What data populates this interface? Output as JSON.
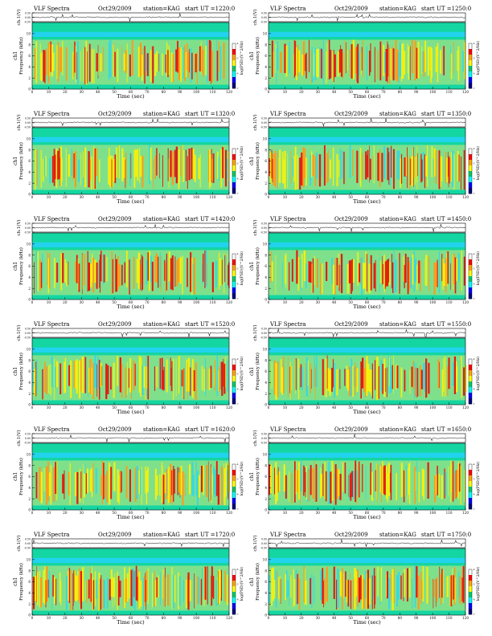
{
  "panels": [
    {
      "title": "VLF Spectra",
      "date": "Oct29/2009",
      "station": "station=KAG",
      "start": "start  UT  =1220:0"
    },
    {
      "title": "VLF Spectra",
      "date": "Oct29/2009",
      "station": "station=KAG",
      "start": "start  UT  =1250:0"
    },
    {
      "title": "VLF Spectra",
      "date": "Oct29/2009",
      "station": "station=KAG",
      "start": "start  UT  =1320:0"
    },
    {
      "title": "VLF Spectra",
      "date": "Oct29/2009",
      "station": "station=KAG",
      "start": "start  UT  =1350:0"
    },
    {
      "title": "VLF Spectra",
      "date": "Oct29/2009",
      "station": "station=KAG",
      "start": "start  UT  =1420:0"
    },
    {
      "title": "VLF Spectra",
      "date": "Oct29/2009",
      "station": "station=KAG",
      "start": "start  UT  =1450:0"
    },
    {
      "title": "VLF Spectra",
      "date": "Oct29/2009",
      "station": "station=KAG",
      "start": "start  UT  =1520:0"
    },
    {
      "title": "VLF Spectra",
      "date": "Oct29/2009",
      "station": "station=KAG",
      "start": "start  UT  =1550:0"
    },
    {
      "title": "VLF Spectra",
      "date": "Oct29/2009",
      "station": "station=KAG",
      "start": "start  UT  =1620:0"
    },
    {
      "title": "VLF Spectra",
      "date": "Oct29/2009",
      "station": "station=KAG",
      "start": "start  UT  =1650:0"
    },
    {
      "title": "VLF Spectra",
      "date": "Oct29/2009",
      "station": "station=KAG",
      "start": "start  UT  =1720:0"
    },
    {
      "title": "VLF Spectra",
      "date": "Oct29/2009",
      "station": "station=KAG",
      "start": "start  UT  =1750:0"
    }
  ],
  "labels": {
    "waveform_ylabel": "ch.1(V)",
    "ch_label": "ch1",
    "spectrogram_ylabel": "Frequency  (kHz)",
    "xlabel": "Time  (sec)",
    "colorbar_label": "log(PSD)(V^2/Hz)"
  },
  "chart_data": {
    "type": "heatmap",
    "layout": "grid of 6 rows by 2 columns",
    "x_ticks": [
      0,
      10,
      20,
      30,
      40,
      50,
      60,
      70,
      80,
      90,
      100,
      110,
      120
    ],
    "xlim": [
      0,
      120
    ],
    "y_ticks": [
      0,
      2,
      4,
      6,
      8,
      10
    ],
    "ylim": [
      0,
      12
    ],
    "waveform_ticks": [
      "0.50",
      "0.00",
      "-0.50"
    ],
    "waveform_ylim": [
      -0.5,
      0.5
    ],
    "colorbar_ticks": [
      "-4",
      "-5",
      "-6",
      "-7"
    ],
    "colormap": [
      "#ffffff",
      "#ff0000",
      "#ffa500",
      "#ffff00",
      "#00cc66",
      "#00ffff",
      "#0000ff",
      "#000080"
    ],
    "spectrogram_colors": {
      "background": "#14d6a2",
      "band": "#7fe08c",
      "top_band": "#22d3ee",
      "yellow": "#f6f00d",
      "orange": "#ff9a1a",
      "red": "#e5190f",
      "cyan": "#3ad8de"
    }
  }
}
